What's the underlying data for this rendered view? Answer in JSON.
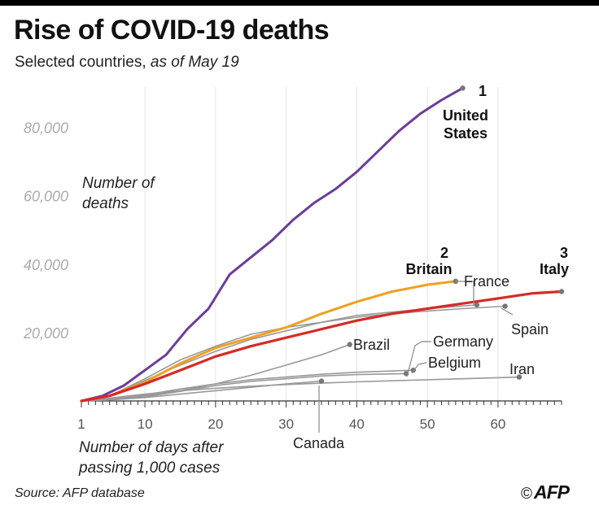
{
  "header": {
    "title": "Rise of COVID-19 deaths",
    "subtitle_main": "Selected countries, ",
    "subtitle_date": "as of May 19"
  },
  "footer": {
    "source": "Source: AFP database",
    "copyright": "©",
    "logo": "AFP"
  },
  "chart_data": {
    "type": "line",
    "ylabel_lines": [
      "Number of",
      "deaths"
    ],
    "xlabel_lines": [
      "Number of days after",
      "passing 1,000 cases"
    ],
    "xlim": [
      1,
      69
    ],
    "ylim": [
      0,
      93000
    ],
    "x_ticks": [
      1,
      10,
      20,
      30,
      40,
      50,
      60
    ],
    "x_tick_labels": [
      "1",
      "10",
      "20",
      "30",
      "40",
      "50",
      "60"
    ],
    "y_ticks": [
      20000,
      40000,
      60000,
      80000
    ],
    "y_tick_labels": [
      "20,000",
      "40,000",
      "60,000",
      "80,000"
    ],
    "grid": "vertical-only",
    "colors": {
      "us": "#6a3d9a",
      "britain": "#f0a020",
      "italy": "#d62a27",
      "other": "#999999",
      "axis": "#333333",
      "tick_text": "#aaaaaa"
    },
    "series": [
      {
        "id": "us",
        "name": "United States",
        "rank": "1",
        "label_lines": [
          "United",
          "States"
        ],
        "x": [
          1,
          4,
          7,
          10,
          13,
          16,
          19,
          22,
          25,
          28,
          31,
          34,
          37,
          40,
          43,
          46,
          49,
          52,
          55
        ],
        "y": [
          0,
          1500,
          4500,
          9000,
          13500,
          21000,
          27000,
          37000,
          42000,
          47000,
          53000,
          58000,
          62000,
          67000,
          73000,
          79000,
          84000,
          88000,
          91500
        ]
      },
      {
        "id": "britain",
        "name": "Britain",
        "rank": "2",
        "label_lines": [
          "Britain"
        ],
        "x": [
          1,
          5,
          10,
          15,
          20,
          25,
          30,
          35,
          40,
          45,
          50,
          54
        ],
        "y": [
          0,
          1500,
          5500,
          11000,
          15500,
          18500,
          21500,
          25500,
          29000,
          32000,
          34000,
          35000
        ]
      },
      {
        "id": "italy",
        "name": "Italy",
        "rank": "3",
        "label_lines": [
          "Italy"
        ],
        "x": [
          1,
          5,
          10,
          15,
          20,
          25,
          30,
          35,
          40,
          45,
          50,
          55,
          60,
          65,
          69
        ],
        "y": [
          0,
          1500,
          5000,
          9000,
          13000,
          16000,
          18500,
          21000,
          23500,
          25500,
          27000,
          28500,
          30000,
          31500,
          32000
        ]
      },
      {
        "id": "france",
        "name": "France",
        "label_lines": [
          "France"
        ],
        "x": [
          1,
          5,
          10,
          15,
          20,
          25,
          30,
          35,
          40,
          45,
          50,
          57
        ],
        "y": [
          0,
          1500,
          6000,
          10500,
          14500,
          18000,
          20500,
          23000,
          25000,
          26000,
          27000,
          28100
        ]
      },
      {
        "id": "spain",
        "name": "Spain",
        "label_lines": [
          "Spain"
        ],
        "x": [
          1,
          5,
          10,
          15,
          20,
          25,
          30,
          35,
          40,
          45,
          50,
          55,
          61
        ],
        "y": [
          0,
          1500,
          6500,
          12000,
          16000,
          19500,
          21500,
          23000,
          24500,
          25500,
          26300,
          27000,
          27700
        ]
      },
      {
        "id": "brazil",
        "name": "Brazil",
        "label_lines": [
          "Brazil"
        ],
        "x": [
          1,
          5,
          10,
          15,
          20,
          25,
          30,
          35,
          39
        ],
        "y": [
          0,
          500,
          1500,
          3000,
          5000,
          7500,
          10500,
          13500,
          16500
        ]
      },
      {
        "id": "germany",
        "name": "Germany",
        "label_lines": [
          "Germany"
        ],
        "x": [
          1,
          5,
          10,
          15,
          20,
          25,
          30,
          35,
          40,
          47
        ],
        "y": [
          0,
          300,
          1200,
          2800,
          4500,
          5700,
          6500,
          7300,
          7700,
          8000
        ]
      },
      {
        "id": "belgium",
        "name": "Belgium",
        "label_lines": [
          "Belgium"
        ],
        "x": [
          1,
          5,
          10,
          15,
          20,
          25,
          30,
          35,
          40,
          48
        ],
        "y": [
          0,
          500,
          1800,
          3500,
          5000,
          6200,
          7000,
          7800,
          8400,
          9000
        ]
      },
      {
        "id": "iran",
        "name": "Iran",
        "label_lines": [
          "Iran"
        ],
        "x": [
          1,
          5,
          10,
          15,
          20,
          25,
          30,
          35,
          40,
          45,
          50,
          55,
          63
        ],
        "y": [
          0,
          800,
          2000,
          3000,
          3700,
          4300,
          4800,
          5200,
          5600,
          5900,
          6200,
          6500,
          7000
        ]
      },
      {
        "id": "canada",
        "name": "Canada",
        "label_lines": [
          "Canada"
        ],
        "x": [
          1,
          5,
          10,
          15,
          20,
          25,
          30,
          35
        ],
        "y": [
          0,
          300,
          1000,
          2000,
          3000,
          4000,
          5000,
          5800
        ]
      }
    ]
  }
}
